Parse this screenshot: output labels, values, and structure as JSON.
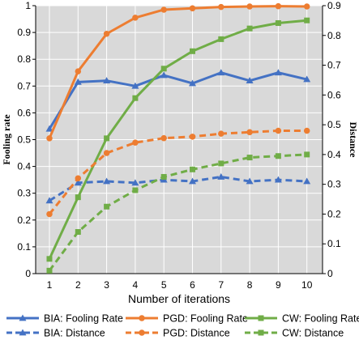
{
  "chart_data": {
    "type": "line",
    "x": [
      1,
      2,
      3,
      4,
      5,
      6,
      7,
      8,
      9,
      10
    ],
    "xlabel": "Number of iterations",
    "ylabel_left": "Fooling rate",
    "ylabel_right": "Distance",
    "ylim_left": [
      0,
      1
    ],
    "ylim_right": [
      0,
      0.9
    ],
    "yticks_left": [
      "0",
      "0.1",
      "0.2",
      "0.3",
      "0.4",
      "0.5",
      "0.6",
      "0.7",
      "0.8",
      "0.9",
      "1"
    ],
    "yticks_right": [
      "0",
      "0.1",
      "0.2",
      "0.3",
      "0.4",
      "0.5",
      "0.6",
      "0.7",
      "0.8",
      "0.9"
    ],
    "xticks": [
      "1",
      "2",
      "3",
      "4",
      "5",
      "6",
      "7",
      "8",
      "9",
      "10"
    ],
    "grid": true,
    "legend_position": "bottom",
    "series": [
      {
        "name": "BIA: Fooling Rate",
        "axis": "left",
        "style": "solid",
        "marker": "triangle",
        "color": "#4472C4",
        "values": [
          0.54,
          0.715,
          0.72,
          0.7,
          0.74,
          0.71,
          0.75,
          0.72,
          0.75,
          0.725
        ]
      },
      {
        "name": "PGD: Fooling Rate",
        "axis": "left",
        "style": "solid",
        "marker": "circle",
        "color": "#ED7D31",
        "values": [
          0.505,
          0.755,
          0.895,
          0.955,
          0.985,
          0.99,
          0.995,
          0.997,
          0.998,
          0.997
        ]
      },
      {
        "name": "CW: Fooling Rate",
        "axis": "left",
        "style": "solid",
        "marker": "square",
        "color": "#70AD47",
        "values": [
          0.055,
          0.285,
          0.505,
          0.655,
          0.765,
          0.83,
          0.875,
          0.915,
          0.935,
          0.945
        ]
      },
      {
        "name": "BIA: Distance",
        "axis": "right",
        "style": "dashed",
        "marker": "triangle",
        "color": "#4472C4",
        "values": [
          0.245,
          0.305,
          0.31,
          0.305,
          0.315,
          0.31,
          0.325,
          0.31,
          0.315,
          0.31
        ]
      },
      {
        "name": "PGD: Distance",
        "axis": "right",
        "style": "dashed",
        "marker": "circle",
        "color": "#ED7D31",
        "values": [
          0.2,
          0.32,
          0.405,
          0.44,
          0.455,
          0.46,
          0.47,
          0.475,
          0.48,
          0.48
        ]
      },
      {
        "name": "CW: Distance",
        "axis": "right",
        "style": "dashed",
        "marker": "square",
        "color": "#70AD47",
        "values": [
          0.01,
          0.14,
          0.225,
          0.28,
          0.325,
          0.35,
          0.37,
          0.39,
          0.395,
          0.4
        ]
      }
    ]
  }
}
